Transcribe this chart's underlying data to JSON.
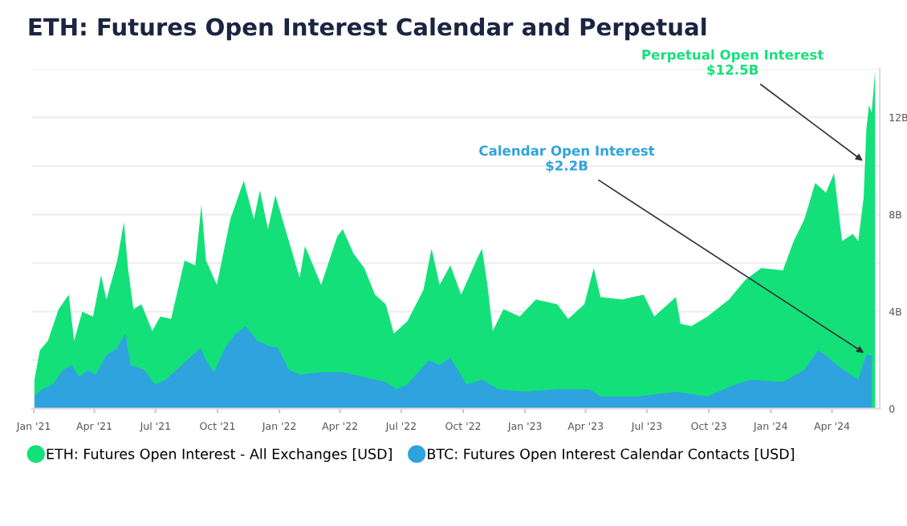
{
  "chart_data": {
    "type": "area",
    "title": "ETH: Futures Open Interest Calendar and Perpetual",
    "series": [
      {
        "name": "ETH: Futures Open Interest - All Exchanges [USD]",
        "color": "#14e07a",
        "x": [
          "2021-01-02",
          "2021-01-10",
          "2021-01-22",
          "2021-02-07",
          "2021-02-22",
          "2021-03-02",
          "2021-03-14",
          "2021-03-30",
          "2021-04-11",
          "2021-04-19",
          "2021-05-05",
          "2021-05-15",
          "2021-05-21",
          "2021-05-29",
          "2021-06-10",
          "2021-06-26",
          "2021-07-08",
          "2021-07-24",
          "2021-08-13",
          "2021-08-29",
          "2021-09-07",
          "2021-09-14",
          "2021-09-30",
          "2021-10-20",
          "2021-11-09",
          "2021-11-24",
          "2021-12-03",
          "2021-12-15",
          "2021-12-26",
          "2022-01-15",
          "2022-01-31",
          "2022-02-08",
          "2022-03-04",
          "2022-03-28",
          "2022-04-05",
          "2022-04-21",
          "2022-05-07",
          "2022-05-23",
          "2022-06-08",
          "2022-06-20",
          "2022-07-10",
          "2022-08-03",
          "2022-08-15",
          "2022-08-27",
          "2022-09-12",
          "2022-09-28",
          "2022-10-22",
          "2022-10-29",
          "2022-11-06",
          "2022-11-14",
          "2022-11-30",
          "2022-12-24",
          "2023-01-17",
          "2023-02-18",
          "2023-03-06",
          "2023-03-30",
          "2023-04-13",
          "2023-04-23",
          "2023-05-25",
          "2023-06-26",
          "2023-07-12",
          "2023-08-13",
          "2023-08-20",
          "2023-09-05",
          "2023-09-29",
          "2023-10-31",
          "2023-11-24",
          "2023-12-18",
          "2024-01-19",
          "2024-02-04",
          "2024-02-20",
          "2024-03-07",
          "2024-03-23",
          "2024-04-04",
          "2024-04-16",
          "2024-05-02",
          "2024-05-10",
          "2024-05-18",
          "2024-05-22",
          "2024-05-26",
          "2024-05-30",
          "2024-06-04"
        ],
        "values": [
          1.2,
          2.4,
          2.8,
          4.1,
          4.7,
          2.8,
          4.0,
          3.8,
          5.5,
          4.5,
          6.1,
          7.7,
          5.8,
          4.1,
          4.3,
          3.2,
          3.8,
          3.7,
          6.1,
          5.9,
          8.4,
          6.1,
          5.1,
          7.8,
          9.4,
          7.8,
          9.0,
          7.4,
          8.8,
          6.9,
          5.4,
          6.7,
          5.1,
          7.1,
          7.4,
          6.4,
          5.8,
          4.7,
          4.3,
          3.1,
          3.6,
          4.9,
          6.6,
          5.1,
          5.9,
          4.7,
          6.2,
          6.6,
          5.1,
          3.2,
          4.1,
          3.8,
          4.5,
          4.3,
          3.7,
          4.3,
          5.8,
          4.6,
          4.5,
          4.7,
          3.8,
          4.6,
          3.5,
          3.4,
          3.8,
          4.5,
          5.3,
          5.8,
          5.7,
          6.9,
          7.8,
          9.3,
          8.9,
          9.7,
          6.9,
          7.2,
          6.9,
          8.7,
          11.5,
          12.5,
          12.2,
          13.9
        ]
      },
      {
        "name": "BTC: Futures Open Interest Calendar Contacts [USD]",
        "color": "#2ea3dd",
        "x": [
          "2021-01-02",
          "2021-01-13",
          "2021-01-29",
          "2021-02-14",
          "2021-02-26",
          "2021-03-10",
          "2021-03-22",
          "2021-04-03",
          "2021-04-19",
          "2021-05-05",
          "2021-05-17",
          "2021-05-25",
          "2021-06-14",
          "2021-06-30",
          "2021-07-16",
          "2021-08-09",
          "2021-08-25",
          "2021-09-06",
          "2021-09-14",
          "2021-09-26",
          "2021-10-12",
          "2021-10-28",
          "2021-11-12",
          "2021-11-29",
          "2021-12-15",
          "2021-12-30",
          "2022-01-15",
          "2022-01-31",
          "2022-03-04",
          "2022-04-05",
          "2022-05-07",
          "2022-06-08",
          "2022-06-24",
          "2022-07-10",
          "2022-08-11",
          "2022-08-27",
          "2022-09-12",
          "2022-10-06",
          "2022-10-29",
          "2022-11-22",
          "2023-01-01",
          "2023-02-18",
          "2023-04-07",
          "2023-04-23",
          "2023-06-18",
          "2023-08-13",
          "2023-09-29",
          "2023-10-31",
          "2023-12-02",
          "2024-01-19",
          "2024-02-20",
          "2024-03-11",
          "2024-03-23",
          "2024-04-08",
          "2024-05-10",
          "2024-05-22",
          "2024-05-30"
        ],
        "values": [
          0.5,
          0.8,
          1.0,
          1.6,
          1.8,
          1.3,
          1.6,
          1.4,
          2.2,
          2.5,
          3.1,
          1.8,
          1.6,
          1.0,
          1.2,
          1.8,
          2.2,
          2.5,
          2.0,
          1.5,
          2.5,
          3.1,
          3.4,
          2.8,
          2.6,
          2.5,
          1.6,
          1.4,
          1.5,
          1.5,
          1.3,
          1.1,
          0.8,
          1.0,
          2.0,
          1.8,
          2.1,
          1.0,
          1.2,
          0.8,
          0.7,
          0.8,
          0.8,
          0.5,
          0.5,
          0.7,
          0.5,
          0.9,
          1.2,
          1.1,
          1.6,
          2.4,
          2.2,
          1.8,
          1.2,
          2.2,
          2.2
        ]
      }
    ],
    "xlim": [
      "2020-12-29",
      "2024-06-11"
    ],
    "xticks": [
      {
        "value": "2021-01-01",
        "label": "Jan '21"
      },
      {
        "value": "2021-04-01",
        "label": "Apr '21"
      },
      {
        "value": "2021-07-01",
        "label": "Jul '21"
      },
      {
        "value": "2021-10-01",
        "label": "Oct '21"
      },
      {
        "value": "2022-01-01",
        "label": "Jan '22"
      },
      {
        "value": "2022-04-01",
        "label": "Apr '22"
      },
      {
        "value": "2022-07-01",
        "label": "Jul '22"
      },
      {
        "value": "2022-10-01",
        "label": "Oct '22"
      },
      {
        "value": "2023-01-01",
        "label": "Jan '23"
      },
      {
        "value": "2023-04-01",
        "label": "Apr '23"
      },
      {
        "value": "2023-07-01",
        "label": "Jul '23"
      },
      {
        "value": "2023-10-01",
        "label": "Oct '23"
      },
      {
        "value": "2024-01-01",
        "label": "Jan '24"
      },
      {
        "value": "2024-04-01",
        "label": "Apr '24"
      }
    ],
    "ylim": [
      0,
      14
    ],
    "yticks": [
      0,
      {
        "value": 2,
        "label": null
      },
      {
        "value": 4,
        "label": "4B"
      },
      {
        "value": 6,
        "label": null
      },
      {
        "value": 8,
        "label": "8B"
      },
      {
        "value": 10,
        "label": null
      },
      {
        "value": 12,
        "label": "12B"
      },
      {
        "value": 14,
        "label": null
      }
    ],
    "grid": "y",
    "legend": "bottom",
    "annotations": [
      {
        "text": "Perpetual Open Interest\n$12.5B",
        "x": "2024-05-22",
        "y": 10.1
      },
      {
        "text": "Calendar Open Interest\n$2.2B",
        "x": "2024-05-24",
        "y": 2.2
      }
    ]
  }
}
